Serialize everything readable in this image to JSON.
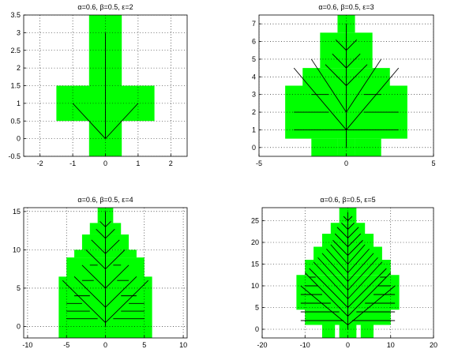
{
  "chart_data": [
    {
      "type": "area",
      "title": "α=0.6,  β=0.5, ε=2",
      "xlabel": "",
      "ylabel": "",
      "xlim": [
        -2.5,
        2.5
      ],
      "ylim": [
        -0.5,
        3.5
      ],
      "xticks": [
        "-2",
        "-1",
        "0",
        "1",
        "2"
      ],
      "yticks": [
        "-0.5",
        "0",
        "0.5",
        "1",
        "1.5",
        "2",
        "2.5",
        "3",
        "3.5"
      ],
      "grid": true,
      "fill_color": "#00ff00",
      "cells": [
        [
          -1.5,
          0.5,
          1.5,
          1.5
        ],
        [
          -0.5,
          -0.5,
          0.5,
          3.5
        ]
      ],
      "branches": [
        [
          0,
          0,
          0,
          3
        ],
        [
          0,
          0,
          -1,
          1
        ],
        [
          0,
          0,
          1,
          1
        ]
      ]
    },
    {
      "type": "area",
      "title": "α=0.6,  β=0.5, ε=3",
      "xlabel": "",
      "ylabel": "",
      "xlim": [
        -5,
        5
      ],
      "ylim": [
        -0.5,
        7.5
      ],
      "xticks": [
        "-5",
        "0",
        "5"
      ],
      "yticks": [
        "0",
        "1",
        "2",
        "3",
        "4",
        "5",
        "6",
        "7"
      ],
      "grid": true,
      "fill_color": "#00ff00",
      "cells": [
        [
          -0.5,
          6.5,
          0.5,
          7.5
        ],
        [
          -1.5,
          4.5,
          1.5,
          6.5
        ],
        [
          -2.5,
          3.5,
          2.5,
          4.5
        ],
        [
          -3.5,
          0.5,
          3.5,
          3.5
        ],
        [
          -2.0,
          -0.5,
          -0.5,
          0.5
        ],
        [
          0.5,
          -0.5,
          2.0,
          0.5
        ],
        [
          -0.5,
          -0.5,
          0.5,
          0.5
        ]
      ],
      "branches": [
        [
          0,
          0,
          0,
          7
        ],
        [
          0,
          1,
          -3,
          4.5
        ],
        [
          0,
          1,
          3,
          4.5
        ],
        [
          0,
          2,
          -2,
          5
        ],
        [
          0,
          2,
          2,
          5
        ],
        [
          0,
          3.5,
          -1.2,
          4.7
        ],
        [
          0,
          3.5,
          1.2,
          4.7
        ],
        [
          0,
          4.5,
          -0.8,
          5.3
        ],
        [
          0,
          4.5,
          0.8,
          5.3
        ],
        [
          0,
          5.5,
          -0.6,
          6.1
        ],
        [
          0,
          5.5,
          0.6,
          6.1
        ],
        [
          -3,
          1,
          3,
          1
        ],
        [
          -3,
          2,
          -1,
          2
        ],
        [
          1,
          2,
          3,
          2
        ],
        [
          -2,
          3,
          -1,
          3
        ],
        [
          1,
          3,
          2,
          3
        ]
      ]
    },
    {
      "type": "area",
      "title": "α=0.6,  β=0.5, ε=4",
      "xlabel": "",
      "ylabel": "",
      "xlim": [
        -10.5,
        10.5
      ],
      "ylim": [
        -1.5,
        15.5
      ],
      "xticks": [
        "-10",
        "-5",
        "0",
        "5",
        "10"
      ],
      "yticks": [
        "0",
        "5",
        "10",
        "15"
      ],
      "grid": true,
      "fill_color": "#00ff00",
      "cells": [
        [
          -6.0,
          -1.5,
          -4.0,
          6.5
        ],
        [
          4.0,
          -1.5,
          6.0,
          6.5
        ],
        [
          -5.0,
          -1.5,
          5.0,
          9.0
        ],
        [
          -4.0,
          9.0,
          4.0,
          10.0
        ],
        [
          -3.0,
          10.0,
          3.0,
          12.0
        ],
        [
          -2.0,
          12.0,
          2.0,
          13.5
        ],
        [
          -1.0,
          13.5,
          1.0,
          15.5
        ],
        [
          -3.0,
          -1.5,
          3.0,
          0.0
        ]
      ],
      "branches": [
        [
          0,
          0,
          0,
          15
        ],
        [
          0,
          0.5,
          -5.5,
          6
        ],
        [
          0,
          0.5,
          5.5,
          6
        ],
        [
          0,
          2.5,
          -4,
          6.5
        ],
        [
          0,
          2.5,
          4,
          6.5
        ],
        [
          0,
          5,
          -3,
          8
        ],
        [
          0,
          5,
          3,
          8
        ],
        [
          0,
          7.5,
          -2.5,
          10
        ],
        [
          0,
          7.5,
          2.5,
          10
        ],
        [
          0,
          9.5,
          -1.8,
          11.3
        ],
        [
          0,
          9.5,
          1.8,
          11.3
        ],
        [
          0,
          11.5,
          -1.2,
          12.7
        ],
        [
          0,
          11.5,
          1.2,
          12.7
        ],
        [
          0,
          13,
          -0.7,
          13.7
        ],
        [
          0,
          13,
          0.7,
          13.7
        ],
        [
          -5,
          1,
          -1,
          1
        ],
        [
          1,
          1,
          5,
          1
        ],
        [
          -5,
          2,
          -2,
          2
        ],
        [
          2,
          2,
          5,
          2
        ],
        [
          -5,
          3,
          -3,
          3
        ],
        [
          3,
          3,
          5,
          3
        ],
        [
          -4,
          4,
          -2,
          4
        ],
        [
          2,
          4,
          4,
          4
        ],
        [
          -3,
          6,
          -1.5,
          6
        ],
        [
          1.5,
          6,
          3,
          6
        ],
        [
          -2,
          8,
          -1,
          8
        ],
        [
          1,
          8,
          2,
          8
        ]
      ]
    },
    {
      "type": "area",
      "title": "α=0.6,  β=0.5, ε=5",
      "xlabel": "",
      "ylabel": "",
      "xlim": [
        -20,
        20
      ],
      "ylim": [
        -2,
        28
      ],
      "xticks": [
        "-20",
        "-10",
        "0",
        "10",
        "20"
      ],
      "yticks": [
        "0",
        "5",
        "10",
        "15",
        "20",
        "25"
      ],
      "grid": true,
      "fill_color": "#00ff00",
      "cells": [
        [
          -6.0,
          -2.0,
          -3.0,
          1.0
        ],
        [
          3.0,
          -2.0,
          6.0,
          1.0
        ],
        [
          -2.0,
          -2.0,
          2.0,
          1.0
        ],
        [
          -10.0,
          1.0,
          10.0,
          4.5
        ],
        [
          -12.0,
          4.5,
          12.0,
          12.5
        ],
        [
          -10.0,
          12.5,
          10.0,
          16.0
        ],
        [
          -8.0,
          16.0,
          8.0,
          19.0
        ],
        [
          -6.0,
          19.0,
          6.0,
          22.0
        ],
        [
          -4.0,
          22.0,
          4.0,
          24.5
        ],
        [
          -2.0,
          24.5,
          2.0,
          28.0
        ]
      ],
      "branches": [
        [
          0,
          0,
          0,
          27
        ],
        [
          0,
          1,
          -11,
          10
        ],
        [
          0,
          1,
          11,
          10
        ],
        [
          0,
          3,
          -10,
          13
        ],
        [
          0,
          3,
          10,
          13
        ],
        [
          0,
          5,
          -9,
          14
        ],
        [
          0,
          5,
          9,
          14
        ],
        [
          0,
          7,
          -8,
          15.5
        ],
        [
          0,
          7,
          8,
          15.5
        ],
        [
          0,
          9,
          -7,
          16.5
        ],
        [
          0,
          9,
          7,
          16.5
        ],
        [
          0,
          11,
          -6,
          17.5
        ],
        [
          0,
          11,
          6,
          17.5
        ],
        [
          0,
          13,
          -5,
          18.5
        ],
        [
          0,
          13,
          5,
          18.5
        ],
        [
          0,
          15,
          -4,
          19.5
        ],
        [
          0,
          15,
          4,
          19.5
        ],
        [
          0,
          17,
          -3.5,
          20.5
        ],
        [
          0,
          17,
          3.5,
          20.5
        ],
        [
          0,
          19,
          -3,
          22
        ],
        [
          0,
          19,
          3,
          22
        ],
        [
          0,
          21,
          -2.5,
          23.5
        ],
        [
          0,
          21,
          2.5,
          23.5
        ],
        [
          0,
          23,
          -1.5,
          24.5
        ],
        [
          0,
          23,
          1.5,
          24.5
        ],
        [
          0,
          25,
          -1,
          26
        ],
        [
          0,
          25,
          1,
          26
        ],
        [
          -11,
          2,
          -1,
          2
        ],
        [
          1,
          2,
          11,
          2
        ],
        [
          -11,
          4,
          -2,
          4
        ],
        [
          2,
          4,
          11,
          4
        ],
        [
          -11,
          6,
          -4,
          6
        ],
        [
          4,
          6,
          11,
          6
        ],
        [
          -11,
          8,
          -6,
          8
        ],
        [
          6,
          8,
          11,
          8
        ],
        [
          -10,
          10,
          -7,
          10
        ],
        [
          7,
          10,
          10,
          10
        ],
        [
          -9,
          12,
          -7.5,
          12
        ],
        [
          7.5,
          12,
          9,
          12
        ]
      ]
    }
  ]
}
